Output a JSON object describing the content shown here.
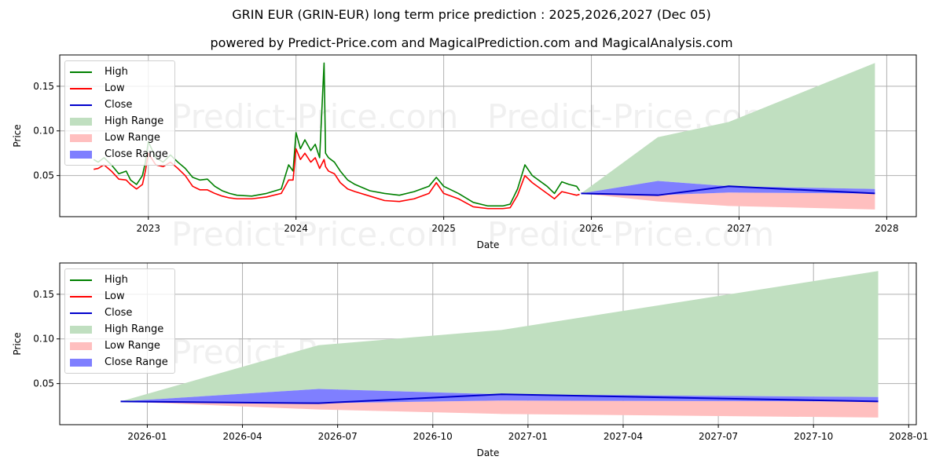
{
  "title": "GRIN EUR (GRIN-EUR) long term price prediction : 2025,2026,2027 (Dec 05)",
  "subtitle": "powered by Predict-Price.com and MagicalPrediction.com and MagicalAnalysis.com",
  "watermark": "Predict-Price.com",
  "colors": {
    "high": "#008000",
    "low": "#ff0000",
    "close": "#0000cc",
    "high_range": "#c0dfc0",
    "low_range": "#ffbfbf",
    "close_range": "#7f7fff",
    "grid": "#b0b0b0"
  },
  "legend": [
    {
      "label": "High",
      "kind": "line",
      "color": "#008000"
    },
    {
      "label": "Low",
      "kind": "line",
      "color": "#ff0000"
    },
    {
      "label": "Close",
      "kind": "line",
      "color": "#0000cc"
    },
    {
      "label": "High Range",
      "kind": "patch",
      "color": "#c0dfc0"
    },
    {
      "label": "Low Range",
      "kind": "patch",
      "color": "#ffbfbf"
    },
    {
      "label": "Close Range",
      "kind": "patch",
      "color": "#7f7fff"
    }
  ],
  "chart_data": [
    {
      "type": "line",
      "title": "GRIN EUR (GRIN-EUR) long term price prediction : 2025,2026,2027 (Dec 05)",
      "xlabel": "Date",
      "ylabel": "Price",
      "xlim": [
        2022.4,
        2028.2
      ],
      "ylim": [
        0.004,
        0.185
      ],
      "xticks": [
        2023,
        2024,
        2025,
        2026,
        2027,
        2028
      ],
      "xtick_labels": [
        "2023",
        "2024",
        "2025",
        "2026",
        "2027",
        "2028"
      ],
      "yticks": [
        0.05,
        0.1,
        0.15
      ],
      "ytick_labels": [
        "0.05",
        "0.10",
        "0.15"
      ],
      "grid": true,
      "legend_position": "upper left",
      "series": [
        {
          "name": "High",
          "x": [
            2022.63,
            2022.66,
            2022.7,
            2022.75,
            2022.8,
            2022.85,
            2022.88,
            2022.92,
            2022.96,
            2022.98,
            2023.0,
            2023.05,
            2023.1,
            2023.15,
            2023.2,
            2023.25,
            2023.3,
            2023.35,
            2023.4,
            2023.45,
            2023.5,
            2023.55,
            2023.6,
            2023.7,
            2023.8,
            2023.9,
            2023.95,
            2023.98,
            2024.0,
            2024.03,
            2024.06,
            2024.1,
            2024.13,
            2024.16,
            2024.19,
            2024.2,
            2024.22,
            2024.26,
            2024.3,
            2024.35,
            2024.4,
            2024.5,
            2024.6,
            2024.7,
            2024.8,
            2024.9,
            2024.95,
            2025.0,
            2025.1,
            2025.2,
            2025.3,
            2025.4,
            2025.45,
            2025.5,
            2025.55,
            2025.6,
            2025.7,
            2025.75,
            2025.8,
            2025.85,
            2025.9,
            2025.92
          ],
          "values": [
            0.068,
            0.065,
            0.07,
            0.062,
            0.052,
            0.055,
            0.045,
            0.04,
            0.05,
            0.065,
            0.088,
            0.07,
            0.065,
            0.073,
            0.065,
            0.058,
            0.048,
            0.045,
            0.046,
            0.038,
            0.033,
            0.03,
            0.028,
            0.027,
            0.03,
            0.035,
            0.062,
            0.055,
            0.098,
            0.08,
            0.09,
            0.078,
            0.085,
            0.07,
            0.176,
            0.075,
            0.07,
            0.065,
            0.055,
            0.045,
            0.04,
            0.033,
            0.03,
            0.028,
            0.032,
            0.038,
            0.048,
            0.038,
            0.03,
            0.02,
            0.016,
            0.016,
            0.018,
            0.035,
            0.062,
            0.05,
            0.038,
            0.03,
            0.043,
            0.04,
            0.038,
            0.033
          ]
        },
        {
          "name": "Low",
          "x": [
            2022.63,
            2022.66,
            2022.7,
            2022.75,
            2022.8,
            2022.85,
            2022.88,
            2022.92,
            2022.96,
            2022.98,
            2023.0,
            2023.05,
            2023.1,
            2023.15,
            2023.2,
            2023.25,
            2023.3,
            2023.35,
            2023.4,
            2023.45,
            2023.5,
            2023.55,
            2023.6,
            2023.7,
            2023.8,
            2023.9,
            2023.95,
            2023.98,
            2024.0,
            2024.03,
            2024.06,
            2024.1,
            2024.13,
            2024.16,
            2024.19,
            2024.2,
            2024.22,
            2024.26,
            2024.3,
            2024.35,
            2024.4,
            2024.5,
            2024.6,
            2024.7,
            2024.8,
            2024.9,
            2024.95,
            2025.0,
            2025.1,
            2025.2,
            2025.3,
            2025.4,
            2025.45,
            2025.5,
            2025.55,
            2025.6,
            2025.7,
            2025.75,
            2025.8,
            2025.85,
            2025.9,
            2025.92
          ],
          "values": [
            0.057,
            0.058,
            0.062,
            0.055,
            0.046,
            0.045,
            0.04,
            0.035,
            0.04,
            0.055,
            0.075,
            0.062,
            0.06,
            0.065,
            0.058,
            0.05,
            0.038,
            0.034,
            0.034,
            0.03,
            0.027,
            0.025,
            0.024,
            0.024,
            0.026,
            0.03,
            0.045,
            0.045,
            0.08,
            0.068,
            0.075,
            0.065,
            0.07,
            0.058,
            0.068,
            0.06,
            0.055,
            0.052,
            0.042,
            0.035,
            0.032,
            0.027,
            0.022,
            0.021,
            0.024,
            0.03,
            0.042,
            0.03,
            0.024,
            0.015,
            0.013,
            0.013,
            0.014,
            0.028,
            0.05,
            0.042,
            0.03,
            0.024,
            0.032,
            0.03,
            0.028,
            0.029
          ]
        },
        {
          "name": "Close",
          "x": [
            2025.93,
            2026.45,
            2026.93,
            2027.92
          ],
          "values": [
            0.03,
            0.028,
            0.038,
            0.03
          ]
        },
        {
          "name": "High Range",
          "x": [
            2025.93,
            2026.45,
            2026.93,
            2027.92
          ],
          "upper": [
            0.03,
            0.093,
            0.11,
            0.176
          ],
          "lower": [
            0.03,
            0.044,
            0.038,
            0.035
          ]
        },
        {
          "name": "Close Range",
          "x": [
            2025.93,
            2026.45,
            2026.93,
            2027.92
          ],
          "upper": [
            0.03,
            0.044,
            0.038,
            0.035
          ],
          "lower": [
            0.03,
            0.028,
            0.031,
            0.03
          ]
        },
        {
          "name": "Low Range",
          "x": [
            2025.93,
            2026.45,
            2026.93,
            2027.92
          ],
          "upper": [
            0.03,
            0.028,
            0.031,
            0.03
          ],
          "lower": [
            0.03,
            0.021,
            0.016,
            0.012
          ]
        }
      ]
    },
    {
      "type": "line",
      "title": "",
      "xlabel": "Date",
      "ylabel": "Price",
      "xlim": [
        2025.77,
        2028.02
      ],
      "ylim": [
        0.004,
        0.185
      ],
      "xticks": [
        2026.0,
        2026.25,
        2026.5,
        2026.75,
        2027.0,
        2027.25,
        2027.5,
        2027.75,
        2028.0
      ],
      "xtick_labels": [
        "2026-01",
        "2026-04",
        "2026-07",
        "2026-10",
        "2027-01",
        "2027-04",
        "2027-07",
        "2027-10",
        "2028-01"
      ],
      "yticks": [
        0.05,
        0.1,
        0.15
      ],
      "ytick_labels": [
        "0.05",
        "0.10",
        "0.15"
      ],
      "grid": true,
      "legend_position": "upper left",
      "series": [
        {
          "name": "Close",
          "x": [
            2025.93,
            2026.45,
            2026.93,
            2027.92
          ],
          "values": [
            0.03,
            0.028,
            0.038,
            0.03
          ]
        },
        {
          "name": "High Range",
          "x": [
            2025.93,
            2026.45,
            2026.93,
            2027.92
          ],
          "upper": [
            0.03,
            0.093,
            0.11,
            0.176
          ],
          "lower": [
            0.03,
            0.044,
            0.038,
            0.035
          ]
        },
        {
          "name": "Close Range",
          "x": [
            2025.93,
            2026.45,
            2026.93,
            2027.92
          ],
          "upper": [
            0.03,
            0.044,
            0.038,
            0.035
          ],
          "lower": [
            0.03,
            0.028,
            0.031,
            0.03
          ]
        },
        {
          "name": "Low Range",
          "x": [
            2025.93,
            2026.45,
            2026.93,
            2027.92
          ],
          "upper": [
            0.03,
            0.028,
            0.031,
            0.03
          ],
          "lower": [
            0.03,
            0.021,
            0.016,
            0.012
          ]
        }
      ]
    }
  ]
}
